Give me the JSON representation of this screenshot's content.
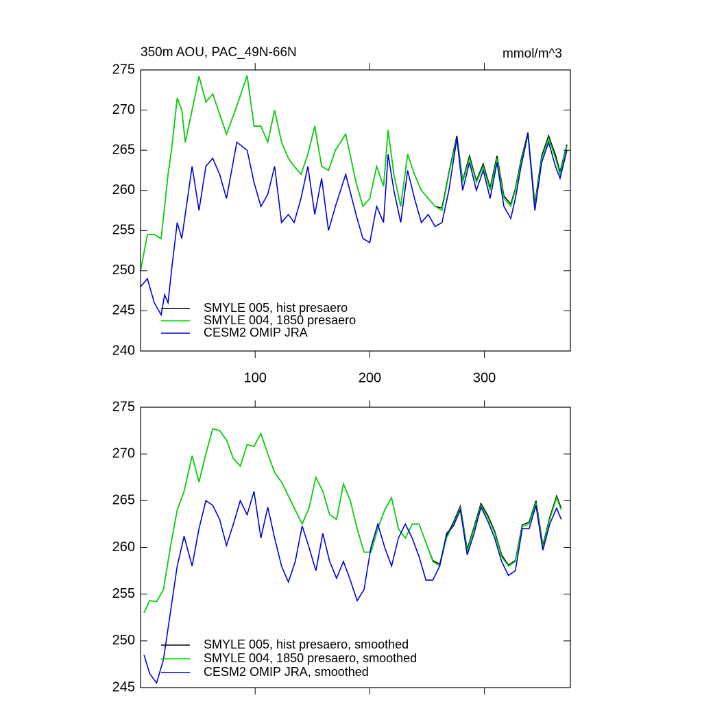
{
  "chart_data": [
    {
      "type": "line",
      "title": "350m AOU, PAC_49N-66N",
      "units": "mmol/m^3",
      "x": [
        0,
        6,
        12,
        18,
        21,
        24,
        27,
        32,
        36,
        39,
        45,
        51,
        57,
        63,
        69,
        75,
        84,
        93,
        99,
        105,
        111,
        117,
        123,
        129,
        134,
        140,
        146,
        152,
        158,
        164,
        170,
        179,
        188,
        194,
        200,
        206,
        212,
        216,
        221,
        227,
        233,
        239,
        245,
        251,
        257,
        263,
        269,
        276,
        281,
        287,
        293,
        299,
        305,
        311,
        317,
        323,
        327,
        332,
        338,
        344,
        350,
        356,
        362,
        366,
        372
      ],
      "series": [
        {
          "name": "SMYLE 005, hist presaero",
          "color": "#000000",
          "values": [
            250,
            254.5,
            254.5,
            254,
            258,
            262,
            265,
            271.5,
            270,
            266,
            270,
            274.2,
            271,
            272,
            269.5,
            267,
            270.5,
            274.3,
            268,
            268,
            266,
            270,
            266,
            264,
            263,
            262,
            264.5,
            268,
            263,
            262.5,
            265,
            267,
            261,
            258,
            259,
            263,
            260.5,
            267.5,
            262,
            258,
            264.5,
            262,
            260,
            259,
            258,
            257.8,
            262.2,
            266.8,
            261.2,
            264.3,
            261.2,
            263.3,
            260.3,
            264.3,
            259.3,
            258.3,
            260.2,
            263.8,
            267.2,
            258.3,
            264.3,
            266.8,
            264.4,
            262.3,
            265.7
          ]
        },
        {
          "name": "SMYLE 004, 1850 presaero",
          "color": "#00dd00",
          "values": [
            250,
            254.5,
            254.5,
            254,
            258,
            262,
            265,
            271.5,
            270,
            266,
            270,
            274.2,
            271,
            272,
            269.5,
            267,
            270.5,
            274.3,
            268,
            268,
            266,
            270,
            266,
            264,
            263,
            262,
            264.5,
            268,
            263,
            262.5,
            265,
            267,
            261,
            258,
            259,
            263,
            260.5,
            267.5,
            262,
            258,
            264.5,
            262,
            260,
            259,
            258,
            257.5,
            262,
            266.5,
            261,
            264,
            261,
            263,
            260,
            264,
            259,
            258,
            260,
            263.5,
            267,
            258,
            264,
            266.5,
            264,
            262,
            265.5
          ]
        },
        {
          "name": "CESM2 OMIP JRA",
          "color": "#0000dd",
          "values": [
            248,
            249,
            246,
            244.5,
            247,
            246,
            250,
            256,
            254,
            257,
            263,
            257.5,
            263,
            264,
            262,
            259,
            266,
            265,
            261,
            258,
            259.5,
            263,
            256,
            257,
            256,
            259,
            263,
            257,
            261.5,
            255,
            258,
            262,
            257,
            254,
            253.5,
            258,
            256,
            264.5,
            260,
            256,
            262.5,
            259,
            256,
            257,
            255.5,
            256,
            260,
            266.5,
            260,
            263.5,
            260,
            262.5,
            259,
            263.5,
            258,
            256.5,
            259,
            263,
            267,
            257.5,
            263.5,
            266,
            263,
            261.5,
            265
          ]
        }
      ],
      "xlim": [
        0,
        375
      ],
      "xticks": [
        100,
        200,
        300
      ],
      "show_xtick_labels": true,
      "ylim": [
        240,
        275
      ],
      "yticks": [
        240,
        245,
        250,
        255,
        260,
        265,
        270,
        275
      ],
      "legend": "lower left"
    },
    {
      "type": "line",
      "x": [
        3,
        8,
        14,
        20,
        26,
        32,
        38,
        45,
        51,
        57,
        63,
        69,
        75,
        81,
        87,
        93,
        99,
        105,
        111,
        117,
        123,
        129,
        135,
        141,
        147,
        153,
        159,
        165,
        171,
        177,
        183,
        189,
        195,
        201,
        207,
        213,
        219,
        225,
        231,
        237,
        243,
        249,
        255,
        261,
        267,
        273,
        279,
        285,
        291,
        297,
        303,
        309,
        315,
        321,
        327,
        333,
        339,
        345,
        351,
        357,
        363,
        367
      ],
      "series": [
        {
          "name": "SMYLE 005, hist presaero, smoothed",
          "color": "#000000",
          "values": [
            253,
            254.3,
            254.2,
            255.5,
            260,
            264,
            266,
            269.8,
            267,
            270,
            272.7,
            272.5,
            271.5,
            269.5,
            268.7,
            271,
            270.8,
            272.2,
            270,
            268,
            267,
            265.5,
            264,
            262.5,
            264.2,
            267.5,
            266,
            263.5,
            263,
            266.8,
            265,
            262,
            259.5,
            259.5,
            262,
            264,
            265.3,
            262,
            261,
            262.5,
            262.5,
            260.5,
            258.6,
            258.2,
            261.2,
            262.7,
            264.4,
            259.8,
            262.2,
            264.7,
            263.4,
            261.7,
            259.2,
            258.1,
            258.6,
            262.4,
            262.7,
            265,
            260.2,
            263.2,
            265.5,
            264.2
          ]
        },
        {
          "name": "SMYLE 004, 1850 presaero, smoothed",
          "color": "#00dd00",
          "values": [
            253,
            254.3,
            254.2,
            255.5,
            260,
            264,
            266,
            269.8,
            267,
            270,
            272.7,
            272.5,
            271.5,
            269.5,
            268.7,
            271,
            270.8,
            272.2,
            270,
            268,
            267,
            265.5,
            264,
            262.5,
            264.2,
            267.5,
            266,
            263.5,
            263,
            266.8,
            265,
            262,
            259.5,
            259.5,
            262,
            264,
            265.3,
            262,
            261,
            262.5,
            262.5,
            260.5,
            258.5,
            258,
            261,
            262.5,
            264.2,
            259.6,
            262,
            264.5,
            263.2,
            261.5,
            259,
            258,
            258.5,
            262.2,
            262.5,
            264.8,
            260,
            263,
            265.3,
            264
          ]
        },
        {
          "name": "CESM2 OMIP JRA, smoothed",
          "color": "#0000dd",
          "values": [
            248.5,
            246.5,
            245.5,
            248,
            253,
            258,
            261.2,
            258,
            262,
            265,
            264.5,
            263,
            260.2,
            262.5,
            265,
            263.5,
            266,
            261,
            264.3,
            261,
            258,
            256.3,
            258.5,
            262.3,
            260,
            257.5,
            261.5,
            258.5,
            256.7,
            258.5,
            256.5,
            254.3,
            255.5,
            260,
            262.5,
            260,
            258,
            261,
            262.5,
            261,
            259,
            256.5,
            256.5,
            258,
            261.5,
            262.3,
            264,
            259.2,
            261.5,
            264.3,
            262.8,
            261,
            258.5,
            257,
            257.5,
            262,
            262,
            264.5,
            259.7,
            262.5,
            264.2,
            263
          ]
        }
      ],
      "xlim": [
        0,
        375
      ],
      "xticks": [
        100,
        200,
        300
      ],
      "show_xtick_labels": false,
      "ylim": [
        245,
        275
      ],
      "yticks": [
        245,
        250,
        255,
        260,
        265,
        270,
        275
      ],
      "legend": "lower left"
    }
  ]
}
